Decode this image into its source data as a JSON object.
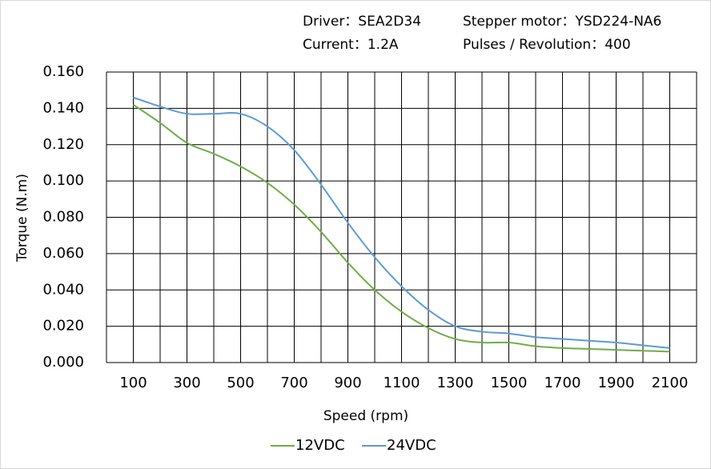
{
  "chart_data": {
    "type": "line",
    "annotations": [
      "Driver：SEA2D34",
      "Stepper motor：YSD224-NA6",
      "Current：1.2A",
      "Pulses / Revolution：400"
    ],
    "x_label": "Speed (rpm)",
    "y_label": "Torque (N.m)",
    "x": [
      100,
      200,
      300,
      400,
      500,
      600,
      700,
      800,
      900,
      1000,
      1100,
      1200,
      1300,
      1400,
      1500,
      1600,
      1700,
      1800,
      1900,
      2000,
      2100
    ],
    "series": [
      {
        "name": "12VDC",
        "color": "#70ad47",
        "values": [
          0.142,
          0.132,
          0.121,
          0.115,
          0.108,
          0.099,
          0.087,
          0.072,
          0.055,
          0.04,
          0.028,
          0.019,
          0.013,
          0.011,
          0.011,
          0.009,
          0.008,
          0.0075,
          0.007,
          0.0065,
          0.006
        ]
      },
      {
        "name": "24VDC",
        "color": "#5b9bd5",
        "values": [
          0.146,
          0.141,
          0.137,
          0.137,
          0.137,
          0.13,
          0.117,
          0.098,
          0.077,
          0.058,
          0.042,
          0.029,
          0.02,
          0.017,
          0.016,
          0.014,
          0.013,
          0.012,
          0.011,
          0.0095,
          0.008
        ]
      }
    ],
    "xlim": [
      0,
      2200
    ],
    "xticks": [
      100,
      300,
      500,
      700,
      900,
      1100,
      1300,
      1500,
      1700,
      1900,
      2100
    ],
    "xgrid": [
      0,
      100,
      200,
      300,
      400,
      500,
      600,
      700,
      800,
      900,
      1000,
      1100,
      1200,
      1300,
      1400,
      1500,
      1600,
      1700,
      1800,
      1900,
      2000,
      2100,
      2200
    ],
    "ylim": [
      0,
      0.16
    ],
    "yticks": [
      {
        "value": 0,
        "label": "0.000"
      },
      {
        "value": 0.02,
        "label": "0.020"
      },
      {
        "value": 0.04,
        "label": "0.040"
      },
      {
        "value": 0.06,
        "label": "0.060"
      },
      {
        "value": 0.08,
        "label": "0.080"
      },
      {
        "value": 0.1,
        "label": "0.100"
      },
      {
        "value": 0.12,
        "label": "0.120"
      },
      {
        "value": 0.14,
        "label": "0.140"
      },
      {
        "value": 0.16,
        "label": "0.160"
      }
    ],
    "grid": true
  }
}
